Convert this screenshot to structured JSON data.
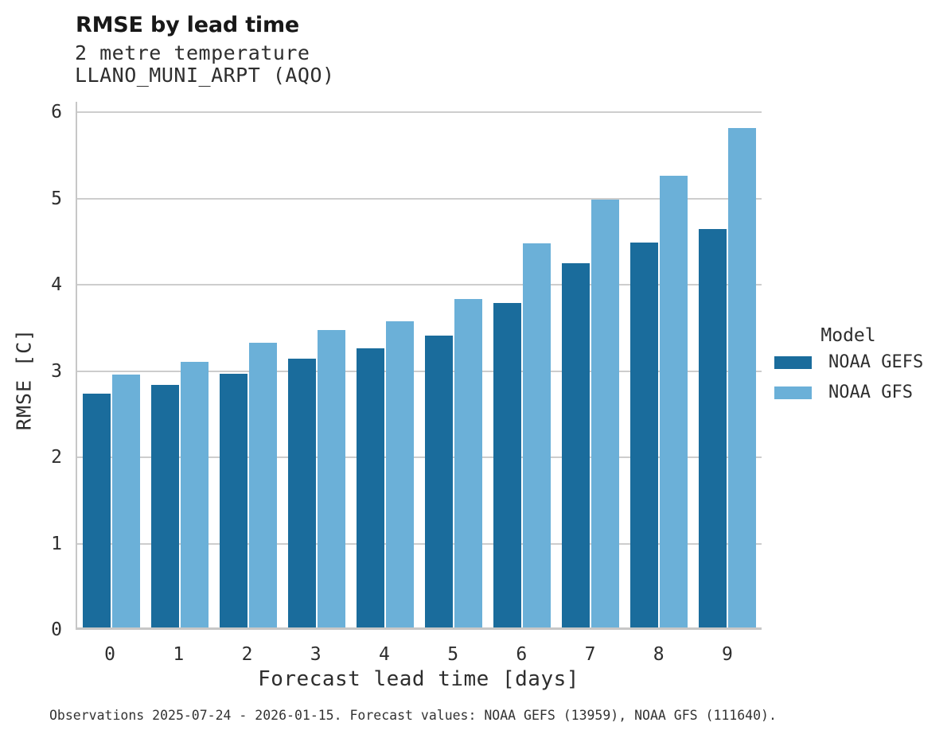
{
  "header": {
    "title": "RMSE by lead time",
    "subtitle1": "2 metre temperature",
    "subtitle2": "LLANO_MUNI_ARPT (AQO)"
  },
  "chart_data": {
    "type": "bar",
    "title": "RMSE by lead time",
    "subtitle": "2 metre temperature — LLANO_MUNI_ARPT (AQO)",
    "categories": [
      "0",
      "1",
      "2",
      "3",
      "4",
      "5",
      "6",
      "7",
      "8",
      "9"
    ],
    "series": [
      {
        "name": "NOAA GEFS",
        "color": "#1a6c9c",
        "values": [
          2.71,
          2.81,
          2.94,
          3.12,
          3.24,
          3.38,
          3.76,
          4.22,
          4.46,
          4.62
        ]
      },
      {
        "name": "NOAA GFS",
        "color": "#6bb0d8",
        "values": [
          2.93,
          3.08,
          3.3,
          3.45,
          3.55,
          3.81,
          4.45,
          4.96,
          5.24,
          5.79
        ]
      }
    ],
    "xlabel": "Forecast lead time [days]",
    "ylabel": "RMSE [C]",
    "ylim": [
      0,
      6.12
    ],
    "yticks": [
      0,
      1,
      2,
      3,
      4,
      5,
      6
    ],
    "grid": true,
    "legend_title": "Model",
    "legend_position": "right of plot, vertically centered"
  },
  "footer": {
    "note": "Observations 2025-07-24 - 2026-01-15. Forecast values: NOAA GEFS (13959), NOAA GFS (111640)."
  }
}
